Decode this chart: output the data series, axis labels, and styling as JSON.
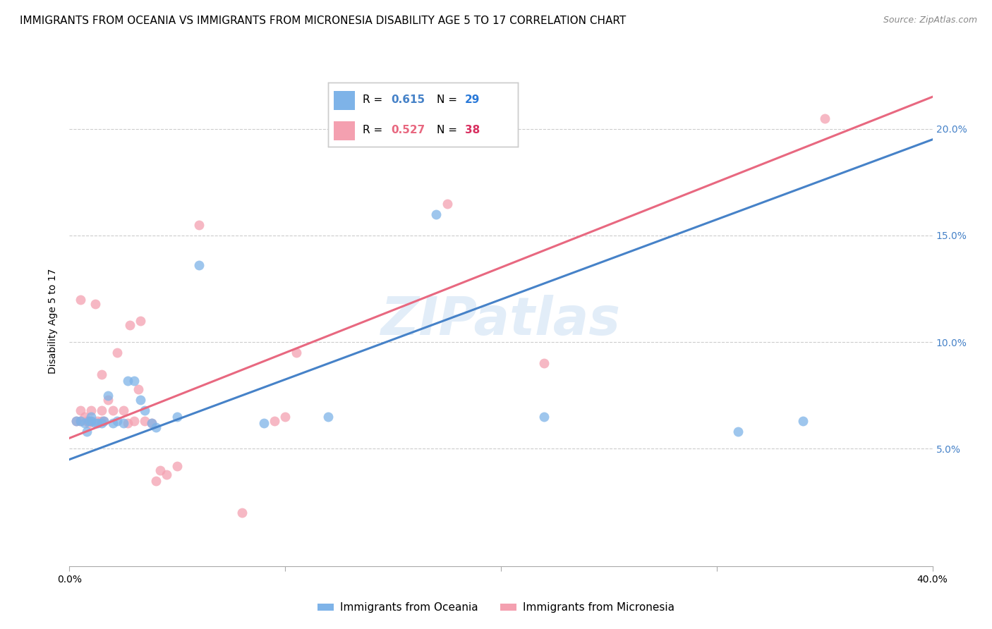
{
  "title": "IMMIGRANTS FROM OCEANIA VS IMMIGRANTS FROM MICRONESIA DISABILITY AGE 5 TO 17 CORRELATION CHART",
  "source": "Source: ZipAtlas.com",
  "ylabel": "Disability Age 5 to 17",
  "xlim": [
    0.0,
    0.4
  ],
  "ylim": [
    -0.005,
    0.225
  ],
  "y_ticks": [
    0.05,
    0.1,
    0.15,
    0.2
  ],
  "y_tick_labels": [
    "5.0%",
    "10.0%",
    "15.0%",
    "20.0%"
  ],
  "x_ticks": [
    0.0,
    0.1,
    0.2,
    0.3,
    0.4
  ],
  "x_tick_labels": [
    "0.0%",
    "",
    "",
    "",
    "40.0%"
  ],
  "legend_labels": [
    "Immigrants from Oceania",
    "Immigrants from Micronesia"
  ],
  "R_oceania": 0.615,
  "N_oceania": 29,
  "R_micronesia": 0.527,
  "N_micronesia": 38,
  "color_oceania": "#7EB3E8",
  "color_micronesia": "#F4A0B0",
  "color_line_oceania": "#4682C8",
  "color_line_micronesia": "#E86880",
  "color_ytick": "#4682C8",
  "watermark": "ZIPatlas",
  "line_oceania_x0": 0.0,
  "line_oceania_y0": 0.045,
  "line_oceania_x1": 0.4,
  "line_oceania_y1": 0.195,
  "line_micronesia_x0": 0.0,
  "line_micronesia_y0": 0.055,
  "line_micronesia_x1": 0.4,
  "line_micronesia_y1": 0.215,
  "oceania_x": [
    0.003,
    0.005,
    0.007,
    0.008,
    0.009,
    0.01,
    0.01,
    0.012,
    0.013,
    0.015,
    0.016,
    0.018,
    0.02,
    0.022,
    0.025,
    0.027,
    0.03,
    0.033,
    0.035,
    0.038,
    0.04,
    0.05,
    0.06,
    0.09,
    0.12,
    0.17,
    0.22,
    0.31,
    0.34
  ],
  "oceania_y": [
    0.063,
    0.063,
    0.062,
    0.058,
    0.063,
    0.063,
    0.065,
    0.062,
    0.062,
    0.062,
    0.063,
    0.075,
    0.062,
    0.063,
    0.062,
    0.082,
    0.082,
    0.073,
    0.068,
    0.062,
    0.06,
    0.065,
    0.136,
    0.062,
    0.065,
    0.16,
    0.065,
    0.058,
    0.063
  ],
  "micronesia_x": [
    0.003,
    0.005,
    0.005,
    0.005,
    0.007,
    0.008,
    0.009,
    0.01,
    0.01,
    0.012,
    0.013,
    0.015,
    0.015,
    0.015,
    0.016,
    0.018,
    0.02,
    0.022,
    0.025,
    0.027,
    0.028,
    0.03,
    0.032,
    0.033,
    0.035,
    0.038,
    0.04,
    0.042,
    0.045,
    0.05,
    0.06,
    0.08,
    0.095,
    0.1,
    0.105,
    0.175,
    0.22,
    0.35
  ],
  "micronesia_y": [
    0.063,
    0.063,
    0.068,
    0.12,
    0.065,
    0.063,
    0.062,
    0.063,
    0.068,
    0.118,
    0.063,
    0.063,
    0.068,
    0.085,
    0.063,
    0.073,
    0.068,
    0.095,
    0.068,
    0.062,
    0.108,
    0.063,
    0.078,
    0.11,
    0.063,
    0.062,
    0.035,
    0.04,
    0.038,
    0.042,
    0.155,
    0.02,
    0.063,
    0.065,
    0.095,
    0.165,
    0.09,
    0.205
  ],
  "background_color": "#FFFFFF",
  "grid_color": "#CCCCCC",
  "title_fontsize": 11,
  "axis_label_fontsize": 10,
  "tick_fontsize": 10
}
